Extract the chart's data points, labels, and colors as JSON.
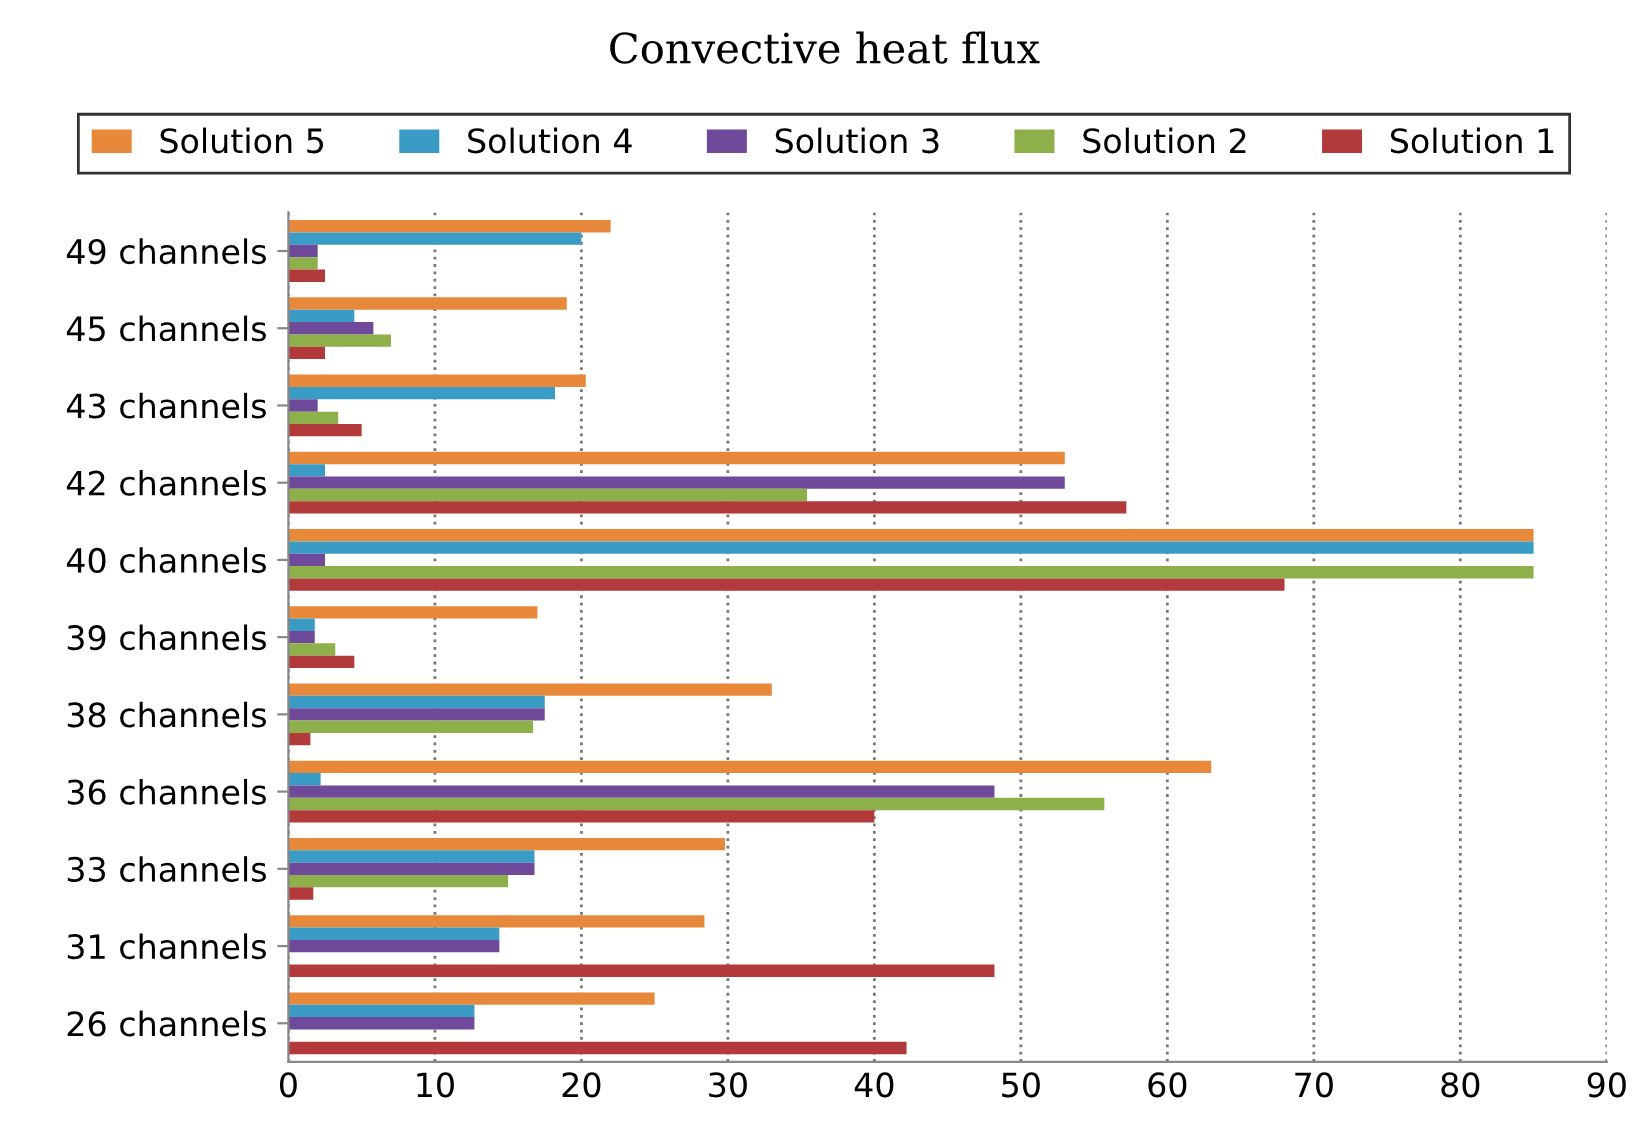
{
  "chart_data": {
    "type": "bar",
    "orientation": "horizontal",
    "title": "Convective heat flux",
    "categories": [
      "49 channels",
      "45 channels",
      "43 channels",
      "42 channels",
      "40 channels",
      "39 channels",
      "38 channels",
      "36 channels",
      "33 channels",
      "31 channels",
      "26 channels"
    ],
    "series": [
      {
        "name": "Solution 5",
        "color": "#e8883a",
        "values": [
          22,
          19,
          20.3,
          53,
          85,
          17,
          33,
          63,
          29.8,
          28.4,
          25
        ]
      },
      {
        "name": "Solution 4",
        "color": "#3a9cc4",
        "values": [
          20,
          4.5,
          18.2,
          2.5,
          85,
          1.8,
          17.5,
          2.2,
          16.8,
          14.4,
          12.7
        ]
      },
      {
        "name": "Solution 3",
        "color": "#6f4a9a",
        "values": [
          2,
          5.8,
          2,
          53,
          2.5,
          1.8,
          17.5,
          48.2,
          16.8,
          14.4,
          12.7
        ]
      },
      {
        "name": "Solution 2",
        "color": "#8db04a",
        "values": [
          2,
          7,
          3.4,
          35.4,
          85,
          3.2,
          16.7,
          55.7,
          15,
          0,
          0
        ]
      },
      {
        "name": "Solution 1",
        "color": "#b33a3a",
        "values": [
          2.5,
          2.5,
          5,
          57.2,
          68,
          4.5,
          1.5,
          40,
          1.7,
          48.2,
          42.2
        ]
      }
    ],
    "xlim": [
      0,
      90
    ],
    "xticks": [
      0,
      10,
      20,
      30,
      40,
      50,
      60,
      70,
      80,
      90
    ],
    "grid": "x",
    "legend": "top"
  }
}
